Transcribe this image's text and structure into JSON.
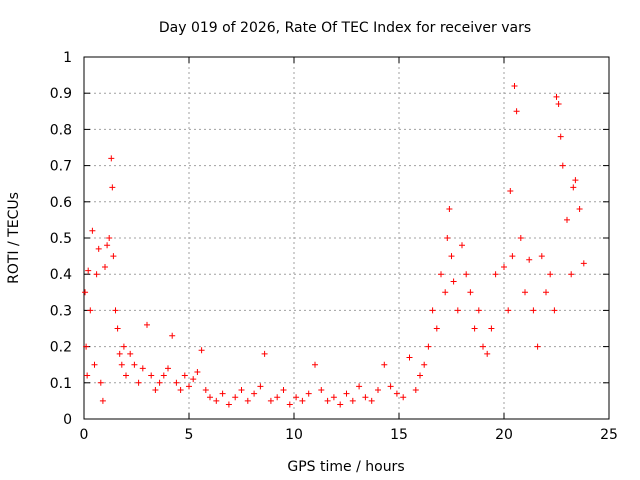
{
  "chart_data": {
    "type": "scatter",
    "title": "Day 019 of 2026, Rate Of TEC Index for receiver vars",
    "xlabel": "GPS time / hours",
    "ylabel": "ROTI / TECUs",
    "xlim": [
      0,
      25
    ],
    "ylim": [
      0,
      1
    ],
    "xticks": [
      0,
      5,
      10,
      15,
      20,
      25
    ],
    "xtick_labels": [
      "0",
      "5",
      "10",
      "15",
      "20",
      "25"
    ],
    "yticks": [
      0,
      0.1,
      0.2,
      0.3,
      0.4,
      0.5,
      0.6,
      0.7,
      0.8,
      0.9,
      1
    ],
    "ytick_labels": [
      "0",
      "0.1",
      "0.2",
      "0.3",
      "0.4",
      "0.5",
      "0.6",
      "0.7",
      "0.8",
      "0.9",
      "1"
    ],
    "grid": true,
    "marker": "+",
    "color": "#ff0000",
    "series": [
      {
        "name": "ROTI",
        "x": [
          0.05,
          0.1,
          0.15,
          0.2,
          0.3,
          0.4,
          0.5,
          0.6,
          0.7,
          0.8,
          0.9,
          1.0,
          1.1,
          1.2,
          1.3,
          1.35,
          1.4,
          1.5,
          1.6,
          1.7,
          1.8,
          1.9,
          2.0,
          2.2,
          2.4,
          2.6,
          2.8,
          3.0,
          3.2,
          3.4,
          3.6,
          3.8,
          4.0,
          4.2,
          4.4,
          4.6,
          4.8,
          5.0,
          5.2,
          5.4,
          5.6,
          5.8,
          6.0,
          6.3,
          6.6,
          6.9,
          7.2,
          7.5,
          7.8,
          8.1,
          8.4,
          8.6,
          8.9,
          9.2,
          9.5,
          9.8,
          10.1,
          10.4,
          10.7,
          11.0,
          11.3,
          11.6,
          11.9,
          12.2,
          12.5,
          12.8,
          13.1,
          13.4,
          13.7,
          14.0,
          14.3,
          14.6,
          14.9,
          15.2,
          15.5,
          15.8,
          16.0,
          16.2,
          16.4,
          16.6,
          16.8,
          17.0,
          17.2,
          17.3,
          17.4,
          17.5,
          17.6,
          17.8,
          18.0,
          18.2,
          18.4,
          18.6,
          18.8,
          19.0,
          19.2,
          19.4,
          19.6,
          20.0,
          20.2,
          20.3,
          20.4,
          20.5,
          20.6,
          20.8,
          21.0,
          21.2,
          21.4,
          21.6,
          21.8,
          22.0,
          22.2,
          22.4,
          22.5,
          22.6,
          22.7,
          22.8,
          23.0,
          23.2,
          23.3,
          23.4,
          23.6,
          23.8
        ],
        "y": [
          0.35,
          0.2,
          0.12,
          0.41,
          0.3,
          0.52,
          0.15,
          0.4,
          0.47,
          0.1,
          0.05,
          0.42,
          0.48,
          0.5,
          0.72,
          0.64,
          0.45,
          0.3,
          0.25,
          0.18,
          0.15,
          0.2,
          0.12,
          0.18,
          0.15,
          0.1,
          0.14,
          0.26,
          0.12,
          0.08,
          0.1,
          0.12,
          0.14,
          0.23,
          0.1,
          0.08,
          0.12,
          0.09,
          0.11,
          0.13,
          0.19,
          0.08,
          0.06,
          0.05,
          0.07,
          0.04,
          0.06,
          0.08,
          0.05,
          0.07,
          0.09,
          0.18,
          0.05,
          0.06,
          0.08,
          0.04,
          0.06,
          0.05,
          0.07,
          0.15,
          0.08,
          0.05,
          0.06,
          0.04,
          0.07,
          0.05,
          0.09,
          0.06,
          0.05,
          0.08,
          0.15,
          0.09,
          0.07,
          0.06,
          0.17,
          0.08,
          0.12,
          0.15,
          0.2,
          0.3,
          0.25,
          0.4,
          0.35,
          0.5,
          0.58,
          0.45,
          0.38,
          0.3,
          0.48,
          0.4,
          0.35,
          0.25,
          0.3,
          0.2,
          0.18,
          0.25,
          0.4,
          0.42,
          0.3,
          0.63,
          0.45,
          0.92,
          0.85,
          0.5,
          0.35,
          0.44,
          0.3,
          0.2,
          0.45,
          0.35,
          0.4,
          0.3,
          0.89,
          0.87,
          0.78,
          0.7,
          0.55,
          0.4,
          0.64,
          0.66,
          0.58,
          0.43
        ]
      }
    ]
  }
}
